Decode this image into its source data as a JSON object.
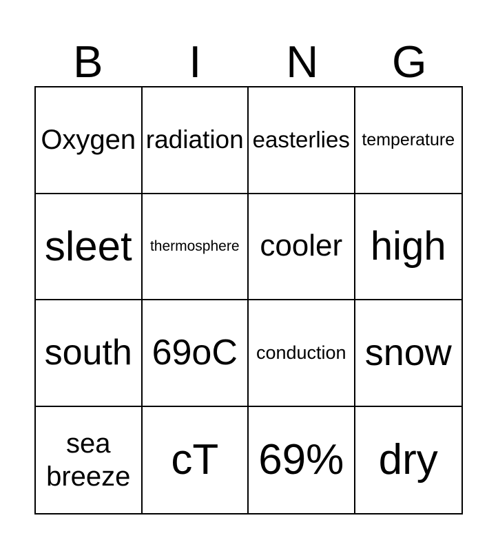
{
  "header": {
    "letters": [
      "B",
      "I",
      "N",
      "G"
    ]
  },
  "card": {
    "cells": [
      {
        "text": "Oxygen"
      },
      {
        "text": "radiation"
      },
      {
        "text": "easterlies"
      },
      {
        "text": "temperature"
      },
      {
        "text": "sleet"
      },
      {
        "text": "thermosphere"
      },
      {
        "text": "cooler"
      },
      {
        "text": "high"
      },
      {
        "text": "south"
      },
      {
        "text": "69oC"
      },
      {
        "text": "conduction"
      },
      {
        "text": "snow"
      },
      {
        "text": "sea breeze"
      },
      {
        "text": "cT"
      },
      {
        "text": "69%"
      },
      {
        "text": "dry"
      }
    ]
  },
  "colors": {
    "background": "#ffffff",
    "text": "#000000",
    "grid_border": "#000000"
  }
}
